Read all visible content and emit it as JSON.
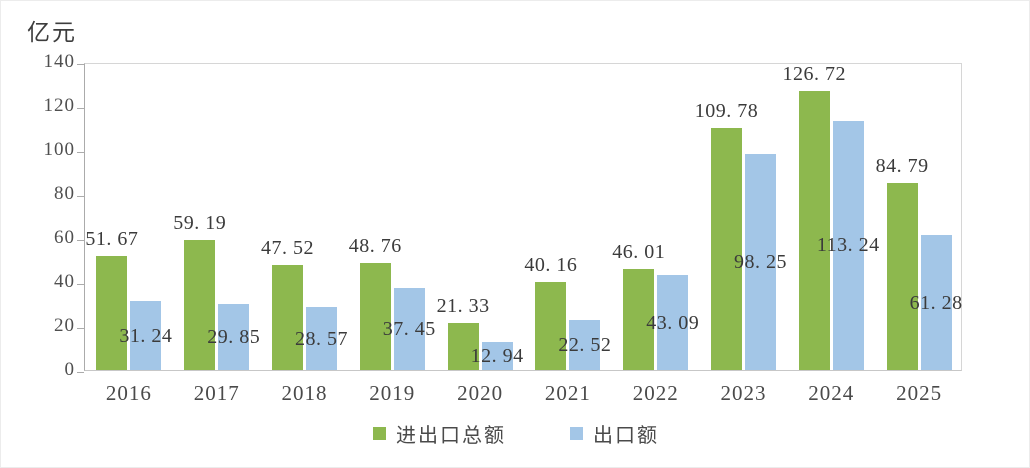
{
  "chart_data": {
    "type": "bar",
    "ylabel": "亿元",
    "categories": [
      "2016",
      "2017",
      "2018",
      "2019",
      "2020",
      "2021",
      "2022",
      "2023",
      "2024",
      "2025"
    ],
    "series": [
      {
        "name": "进出口总额",
        "color": "#8db84e",
        "values": [
          51.67,
          59.19,
          47.52,
          48.76,
          21.33,
          40.16,
          46.01,
          109.78,
          126.72,
          84.79
        ]
      },
      {
        "name": "出口额",
        "color": "#a3c6e7",
        "values": [
          31.24,
          29.85,
          28.57,
          37.45,
          12.94,
          22.52,
          43.09,
          98.25,
          113.24,
          61.28
        ]
      }
    ],
    "ylim": [
      0,
      140
    ],
    "yticks": [
      0,
      20,
      40,
      60,
      80,
      100,
      120,
      140
    ],
    "grid": "off",
    "legend_position": "bottom",
    "value_labels": "on"
  }
}
